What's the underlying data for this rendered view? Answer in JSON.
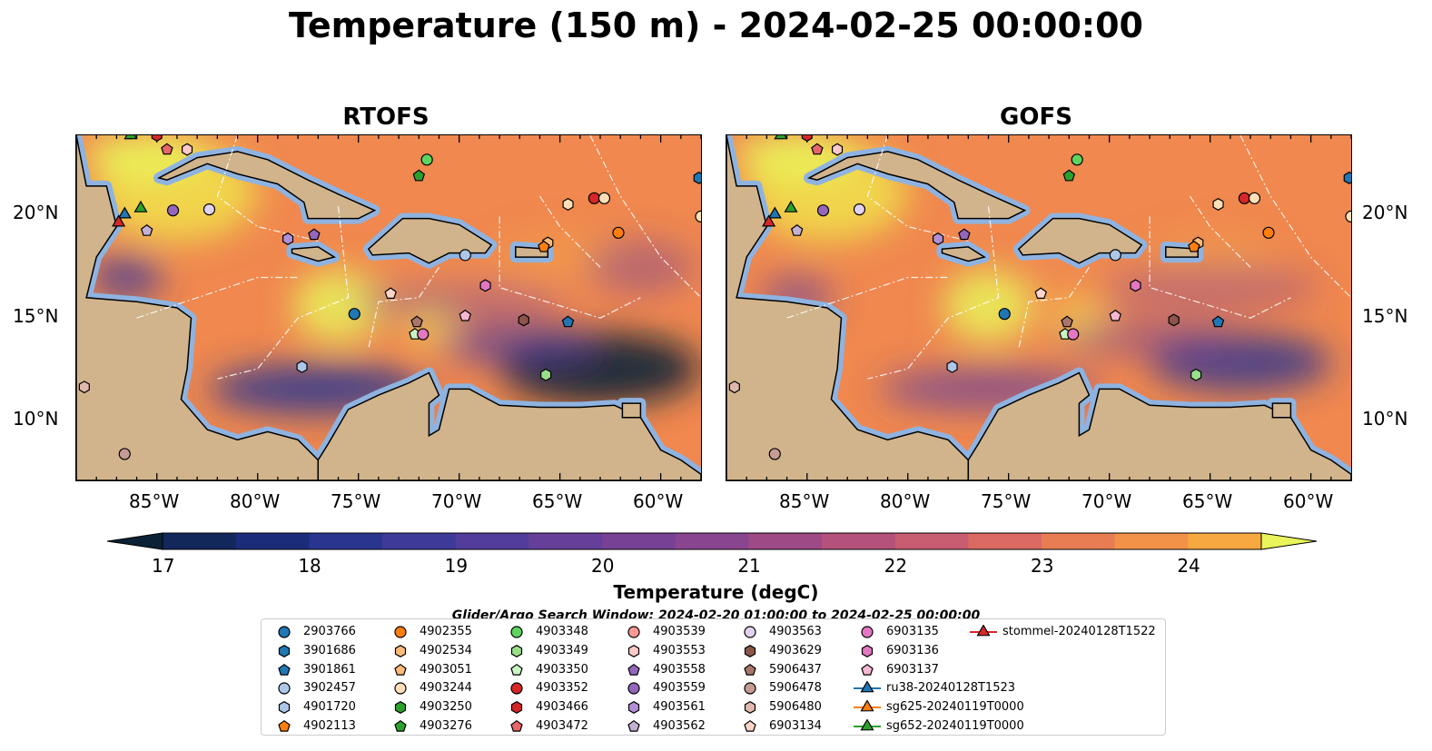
{
  "title": "Temperature (150 m) - 2024-02-25 00:00:00",
  "panels": [
    {
      "subtitle": "RTOFS"
    },
    {
      "subtitle": "GOFS"
    }
  ],
  "x_ticks": [
    "85°W",
    "80°W",
    "75°W",
    "70°W",
    "65°W",
    "60°W"
  ],
  "y_ticks": [
    "20°N",
    "15°N",
    "10°N"
  ],
  "colorbar": {
    "label": "Temperature (degC)",
    "ticks": [
      "17",
      "18",
      "19",
      "20",
      "21",
      "22",
      "23",
      "24"
    ],
    "min": 17,
    "max": 24.5,
    "step": 0.5,
    "colors": [
      "#0b2236",
      "#12285a",
      "#1a2c7a",
      "#2a3590",
      "#3e3a9a",
      "#523d9c",
      "#653f9a",
      "#774196",
      "#8a4590",
      "#9e4a87",
      "#b4527c",
      "#c85c70",
      "#da6a62",
      "#e87d53",
      "#f29248",
      "#f7a840",
      "#f9bf40",
      "#f5d94a",
      "#e9f55a"
    ]
  },
  "chart_data": {
    "type": "heatmap",
    "variable": "Temperature (150 m)",
    "units": "degC",
    "color_range": [
      17,
      24.5
    ],
    "lon_range": [
      -89,
      -58
    ],
    "lat_range": [
      7,
      24
    ],
    "panels": [
      "RTOFS",
      "GOFS"
    ]
  },
  "search_window": "Glider/Argo Search Window: 2024-02-20 01:00:00 to 2024-02-25 00:00:00",
  "legend": [
    {
      "label": "2903766",
      "marker": "circle",
      "color": "#1f77b4"
    },
    {
      "label": "3901686",
      "marker": "hexagon",
      "color": "#1f77b4"
    },
    {
      "label": "3901861",
      "marker": "pentagon",
      "color": "#1f77b4"
    },
    {
      "label": "3902457",
      "marker": "circle",
      "color": "#aec7e8"
    },
    {
      "label": "4901720",
      "marker": "hexagon",
      "color": "#aec7e8"
    },
    {
      "label": "4902113",
      "marker": "pentagon",
      "color": "#ff7f0e"
    },
    {
      "label": "4902355",
      "marker": "circle",
      "color": "#ff7f0e"
    },
    {
      "label": "4902534",
      "marker": "hexagon",
      "color": "#ffbb78"
    },
    {
      "label": "4903051",
      "marker": "pentagon",
      "color": "#ffbb78"
    },
    {
      "label": "4903244",
      "marker": "circle",
      "color": "#ffdfb8"
    },
    {
      "label": "4903250",
      "marker": "hexagon",
      "color": "#2ca02c"
    },
    {
      "label": "4903276",
      "marker": "pentagon",
      "color": "#2ca02c"
    },
    {
      "label": "4903348",
      "marker": "circle",
      "color": "#5fd35f"
    },
    {
      "label": "4903349",
      "marker": "hexagon",
      "color": "#98df8a"
    },
    {
      "label": "4903350",
      "marker": "pentagon",
      "color": "#c9f5c0"
    },
    {
      "label": "4903352",
      "marker": "circle",
      "color": "#d62728"
    },
    {
      "label": "4903466",
      "marker": "hexagon",
      "color": "#d62728"
    },
    {
      "label": "4903472",
      "marker": "pentagon",
      "color": "#e8666a"
    },
    {
      "label": "4903539",
      "marker": "circle",
      "color": "#ff9896"
    },
    {
      "label": "4903553",
      "marker": "hexagon",
      "color": "#ffc9c8"
    },
    {
      "label": "4903558",
      "marker": "pentagon",
      "color": "#9467bd"
    },
    {
      "label": "4903559",
      "marker": "circle",
      "color": "#9467bd"
    },
    {
      "label": "4903561",
      "marker": "hexagon",
      "color": "#b18fd6"
    },
    {
      "label": "4903562",
      "marker": "pentagon",
      "color": "#c5b0d5"
    },
    {
      "label": "4903563",
      "marker": "circle",
      "color": "#e2d2f2"
    },
    {
      "label": "4903629",
      "marker": "hexagon",
      "color": "#8c564b"
    },
    {
      "label": "5906437",
      "marker": "pentagon",
      "color": "#a9776a"
    },
    {
      "label": "5906478",
      "marker": "circle",
      "color": "#c49c94"
    },
    {
      "label": "5906480",
      "marker": "hexagon",
      "color": "#e0b8ad"
    },
    {
      "label": "6903134",
      "marker": "pentagon",
      "color": "#fcd5c8"
    },
    {
      "label": "6903135",
      "marker": "circle",
      "color": "#e377c2"
    },
    {
      "label": "6903136",
      "marker": "hexagon",
      "color": "#e377c2"
    },
    {
      "label": "6903137",
      "marker": "pentagon",
      "color": "#f7b6d2"
    },
    {
      "label": "ru38-20240128T1523",
      "marker": "triangle",
      "color": "#1f77b4"
    },
    {
      "label": "sg625-20240119T0000",
      "marker": "triangle",
      "color": "#ff7f0e"
    },
    {
      "label": "sg652-20240119T0000",
      "marker": "triangle",
      "color": "#2ca02c"
    },
    {
      "label": "stommel-20240128T1522",
      "marker": "triangle",
      "color": "#d62728"
    }
  ]
}
